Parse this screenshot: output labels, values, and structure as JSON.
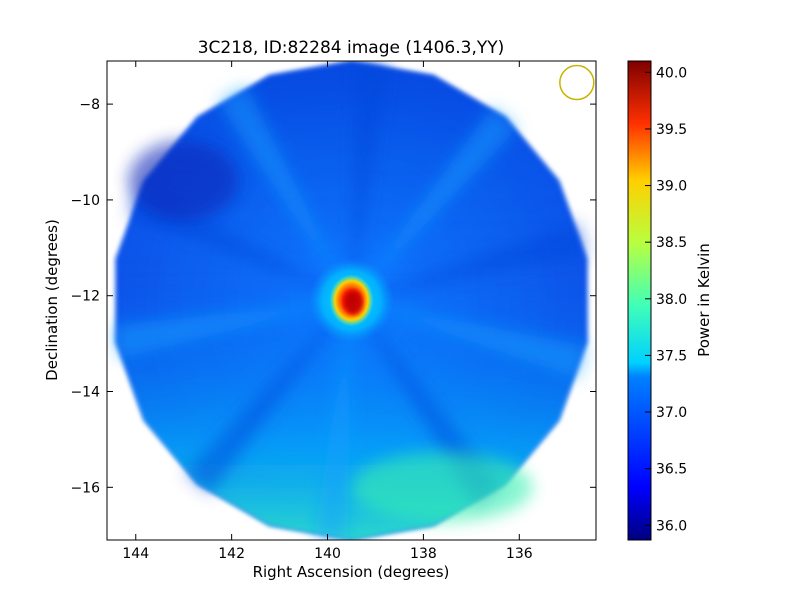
{
  "chart_data": {
    "type": "heatmap",
    "title": "3C218, ID:82284 image (1406.3,YY)",
    "xlabel": "Right Ascension (degrees)",
    "ylabel": "Declination (degrees)",
    "xlim": [
      144.6,
      134.4
    ],
    "ylim": [
      -17.1,
      -7.1
    ],
    "x_reversed": true,
    "x_ticks": [
      144,
      142,
      140,
      138,
      136
    ],
    "y_ticks": [
      -8,
      -10,
      -12,
      -14,
      -16
    ],
    "colorbar": {
      "label": "Power in Kelvin",
      "range": [
        35.87,
        40.1
      ],
      "ticks": [
        36.0,
        36.5,
        37.0,
        37.5,
        38.0,
        38.5,
        39.0,
        39.5,
        40.0
      ],
      "colormap": "jet"
    },
    "field": {
      "shape": "polygon",
      "sides": 18,
      "center": [
        139.5,
        -12.1
      ],
      "radius_deg": 5.0,
      "background_level": 36.6,
      "bottom_level": 37.4
    },
    "source": {
      "name": "3C218",
      "ra": 139.5,
      "dec": -12.1,
      "peak": 40.0
    },
    "beam": {
      "ra": 134.8,
      "dec": -7.55,
      "color": "#c8b400"
    },
    "grid": false,
    "colors": {
      "beam_outline": "#c8b400",
      "axes": "#000000"
    }
  }
}
